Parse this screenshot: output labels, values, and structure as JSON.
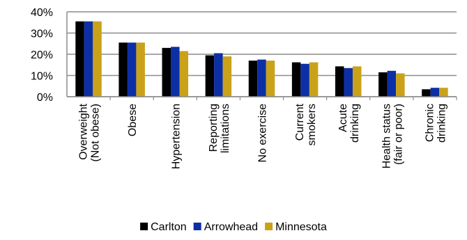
{
  "chart_data": {
    "type": "bar",
    "categories": [
      [
        "Overweight",
        "(Not obese)"
      ],
      [
        "Obese"
      ],
      [
        "Hypertension"
      ],
      [
        "Reporting",
        "limitations"
      ],
      [
        "No exercise"
      ],
      [
        "Current",
        "smokers"
      ],
      [
        "Acute",
        "drinking"
      ],
      [
        "Health status",
        "(fair or poor)"
      ],
      [
        "Chronic",
        "drinking"
      ]
    ],
    "series": [
      {
        "name": "Carlton",
        "color": "#000000",
        "values": [
          35.5,
          25.5,
          23,
          19.5,
          17,
          16.2,
          14.3,
          11.5,
          3.5
        ]
      },
      {
        "name": "Arrowhead",
        "color": "#0d2fa6",
        "values": [
          35.5,
          25.5,
          23.5,
          20.5,
          17.5,
          15.5,
          13.5,
          12.2,
          4.2
        ]
      },
      {
        "name": "Minnesota",
        "color": "#c9a21a",
        "values": [
          35.5,
          25.5,
          21.5,
          19,
          17,
          16.2,
          14.3,
          11,
          4.2
        ]
      }
    ],
    "yticks": [
      "0%",
      "10%",
      "20%",
      "30%",
      "40%"
    ],
    "ylim": [
      0,
      40
    ],
    "grid": true,
    "legend_position": "bottom"
  }
}
